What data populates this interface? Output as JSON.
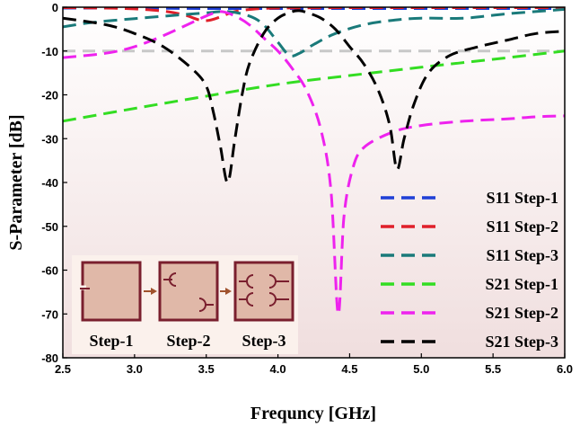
{
  "chart_data": {
    "type": "line",
    "xlabel": "Frequncy [GHz]",
    "ylabel": "S-Parameter [dB]",
    "xlim": [
      2.5,
      6.0
    ],
    "ylim": [
      -80,
      0
    ],
    "xticks": [
      "2.5",
      "3.0",
      "3.5",
      "4.0",
      "4.5",
      "5.0",
      "5.5",
      "6.0"
    ],
    "yticks": [
      "0",
      "-10",
      "-20",
      "-30",
      "-40",
      "-50",
      "-60",
      "-70",
      "-80"
    ],
    "reference_line": {
      "y": -10,
      "color": "#c8c8c8",
      "dash": "dashed"
    },
    "background": "gradient white-to-pink",
    "legend_placement": "bottom-right",
    "series": [
      {
        "name": "S11 Step-1",
        "color": "#1f3fd6",
        "x": [
          2.5,
          3.0,
          3.5,
          4.0,
          4.5,
          5.0,
          5.5,
          6.0
        ],
        "values": [
          -0.2,
          -0.2,
          -0.3,
          -0.3,
          -0.3,
          -0.3,
          -0.3,
          -0.3
        ]
      },
      {
        "name": "S11 Step-2",
        "color": "#e0202a",
        "x": [
          2.5,
          2.8,
          3.0,
          3.2,
          3.35,
          3.45,
          3.52,
          3.6,
          3.7,
          3.85,
          4.0,
          4.5,
          5.0,
          6.0
        ],
        "values": [
          -0.1,
          -0.2,
          -0.4,
          -0.9,
          -1.8,
          -2.9,
          -3.0,
          -2.2,
          -1.0,
          -0.4,
          -0.2,
          -0.1,
          -0.1,
          -0.1
        ]
      },
      {
        "name": "S11 Step-3",
        "color": "#1a7a7a",
        "x": [
          2.5,
          2.7,
          3.0,
          3.3,
          3.5,
          3.65,
          3.8,
          3.9,
          4.0,
          4.08,
          4.15,
          4.25,
          4.4,
          4.6,
          4.8,
          5.0,
          5.3,
          5.6,
          6.0
        ],
        "values": [
          -4.5,
          -3.5,
          -2.6,
          -1.8,
          -1.3,
          -1.0,
          -2.0,
          -4.0,
          -8.0,
          -11.0,
          -10.5,
          -8.5,
          -6.0,
          -4.0,
          -3.0,
          -2.5,
          -2.5,
          -1.5,
          -0.5
        ]
      },
      {
        "name": "S21 Step-1",
        "color": "#33dd22",
        "x": [
          2.5,
          3.0,
          3.5,
          4.0,
          4.5,
          5.0,
          5.5,
          6.0
        ],
        "values": [
          -26,
          -23.1,
          -20.3,
          -17.6,
          -15.6,
          -13.7,
          -11.9,
          -10.0
        ]
      },
      {
        "name": "S21 Step-2",
        "color": "#ee22ee",
        "x": [
          2.5,
          2.8,
          3.0,
          3.2,
          3.4,
          3.5,
          3.6,
          3.7,
          3.8,
          3.9,
          4.0,
          4.1,
          4.2,
          4.3,
          4.37,
          4.42,
          4.46,
          4.52,
          4.6,
          4.8,
          5.0,
          5.3,
          5.6,
          5.8,
          6.0
        ],
        "values": [
          -11.5,
          -10.5,
          -9.0,
          -6.5,
          -3.5,
          -2.0,
          -1.0,
          -2.0,
          -4.0,
          -7.0,
          -10.0,
          -14.0,
          -19.0,
          -28.0,
          -42.0,
          -70.0,
          -48.0,
          -37.0,
          -32.0,
          -28.5,
          -27.0,
          -26.0,
          -25.5,
          -25.0,
          -24.8
        ]
      },
      {
        "name": "S21 Step-3",
        "color": "#000000",
        "x": [
          2.5,
          2.8,
          3.0,
          3.2,
          3.4,
          3.5,
          3.55,
          3.6,
          3.65,
          3.7,
          3.75,
          3.8,
          3.9,
          4.0,
          4.1,
          4.15,
          4.2,
          4.3,
          4.4,
          4.5,
          4.6,
          4.7,
          4.78,
          4.83,
          4.88,
          4.95,
          5.05,
          5.2,
          5.4,
          5.6,
          5.8,
          6.0
        ],
        "values": [
          -2.5,
          -4.0,
          -6.0,
          -9.0,
          -14.0,
          -18.0,
          -24.0,
          -32.0,
          -40.0,
          -30.0,
          -20.0,
          -13.0,
          -6.0,
          -2.5,
          -1.0,
          -0.8,
          -1.2,
          -2.5,
          -5.0,
          -9.0,
          -13.0,
          -19.0,
          -27.0,
          -37.0,
          -30.0,
          -22.0,
          -15.0,
          -11.0,
          -9.0,
          -7.5,
          -6.0,
          -5.5
        ]
      }
    ]
  },
  "inset": {
    "steps": [
      "Step-1",
      "Step-2",
      "Step-3"
    ],
    "border_color": "#7a1f2e",
    "fill_color": "#e0b8a8"
  }
}
